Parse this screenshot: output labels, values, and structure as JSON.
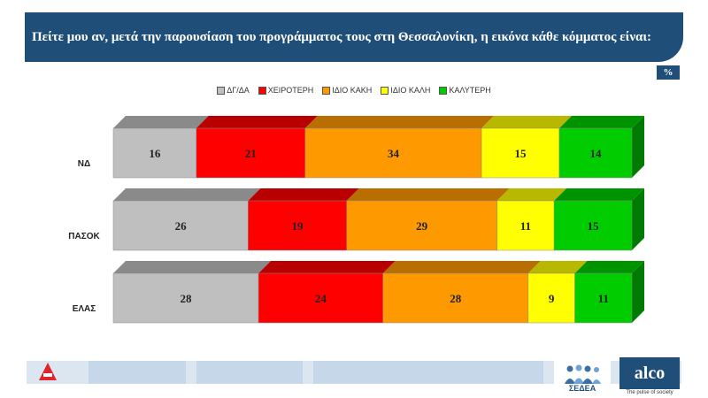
{
  "header": {
    "title": "Πείτε μου αν, μετά την παρουσίαση του προγράμματος τους στη Θεσσαλονίκη,  η εικόνα κάθε κόμματος είναι:"
  },
  "unit_badge": "%",
  "colors": {
    "header_bg": "#1f4e79",
    "dk": "#bfbfbf",
    "worse": "#ff0000",
    "same_bad": "#ff9900",
    "same_good": "#ffff00",
    "better": "#00cc00"
  },
  "footer": {
    "sedea_label": "ΣΕΔΕΑ",
    "alco_label": "alco",
    "alco_tagline": "The pulse of society"
  },
  "chart_data": {
    "type": "bar",
    "orientation": "horizontal",
    "stacked": true,
    "title": "",
    "unit": "%",
    "categories": [
      "ΝΔ",
      "ΠΑΣΟΚ",
      "ΕΛΑΣ"
    ],
    "legend_position": "top",
    "series": [
      {
        "name": "ΔΓ/ΔΑ",
        "color": "#bfbfbf",
        "values": [
          16,
          26,
          28
        ]
      },
      {
        "name": "ΧΕΙΡΟΤΕΡΗ",
        "color": "#ff0000",
        "values": [
          21,
          19,
          24
        ]
      },
      {
        "name": "ΙΔΙΟ ΚΑΚΗ",
        "color": "#ff9900",
        "values": [
          34,
          29,
          28
        ]
      },
      {
        "name": "ΙΔΙΟ ΚΑΛΗ",
        "color": "#ffff00",
        "values": [
          15,
          11,
          9
        ]
      },
      {
        "name": "ΚΑΛΥΤΕΡΗ",
        "color": "#00cc00",
        "values": [
          14,
          15,
          11
        ]
      }
    ]
  }
}
